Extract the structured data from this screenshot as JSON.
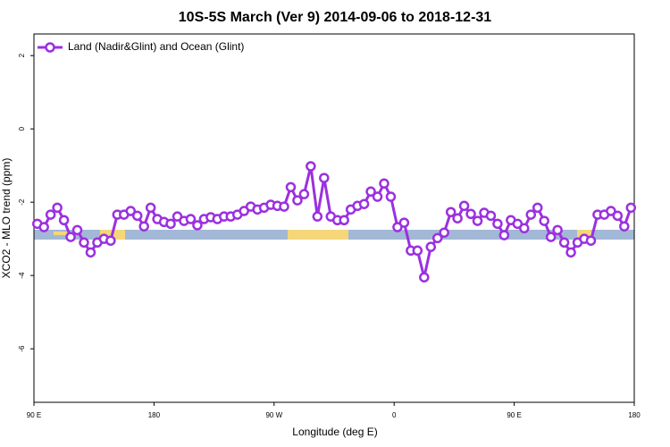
{
  "chart_data": {
    "type": "line",
    "title": "10S-5S March (Ver 9)   2014-09-06 to 2018-12-31",
    "x_label": "Longitude (deg E)",
    "y_label": "XCO2 - MLO trend (ppm)",
    "x": [
      92.5,
      97.5,
      102.5,
      107.5,
      112.5,
      117.5,
      122.5,
      127.5,
      132.5,
      137.5,
      142.5,
      147.5,
      152.5,
      157.5,
      162.5,
      167.5,
      172.5,
      177.5,
      182.5,
      187.5,
      192.5,
      197.5,
      202.5,
      207.5,
      212.5,
      217.5,
      222.5,
      227.5,
      232.5,
      237.5,
      242.5,
      247.5,
      252.5,
      257.5,
      262.5,
      267.5,
      272.5,
      277.5,
      282.5,
      287.5,
      292.5,
      297.5,
      302.5,
      307.5,
      312.5,
      317.5,
      322.5,
      327.5,
      332.5,
      337.5,
      342.5,
      347.5,
      352.5,
      357.5,
      362.5,
      367.5,
      372.5,
      377.5,
      382.5,
      387.5,
      392.5,
      397.5,
      402.5,
      407.5,
      412.5,
      417.5,
      422.5,
      427.5,
      432.5,
      437.5,
      442.5,
      447.5,
      452.5,
      457.5,
      462.5,
      467.5,
      472.5,
      477.5,
      482.5,
      487.5,
      492.5,
      497.5,
      502.5,
      507.5,
      512.5,
      517.5,
      522.5,
      527.5,
      532.5,
      537.5
    ],
    "series": [
      {
        "name": "Land (Nadir&Glint) and Ocean (Glint)",
        "color": "#9b30e0",
        "values": [
          -2.59,
          -2.68,
          -2.34,
          -2.15,
          -2.49,
          -2.95,
          -2.76,
          -3.1,
          -3.37,
          -3.1,
          -3.0,
          -3.05,
          -2.34,
          -2.34,
          -2.24,
          -2.37,
          -2.66,
          -2.15,
          -2.46,
          -2.54,
          -2.59,
          -2.39,
          -2.51,
          -2.46,
          -2.63,
          -2.46,
          -2.41,
          -2.46,
          -2.39,
          -2.39,
          -2.34,
          -2.24,
          -2.12,
          -2.2,
          -2.15,
          -2.07,
          -2.1,
          -2.12,
          -1.59,
          -1.95,
          -1.78,
          -1.02,
          -2.39,
          -1.34,
          -2.39,
          -2.49,
          -2.49,
          -2.2,
          -2.1,
          -2.05,
          -1.71,
          -1.85,
          -1.49,
          -1.85,
          -2.68,
          -2.56,
          -3.32,
          -3.32,
          -4.05,
          -3.22,
          -2.98,
          -2.83,
          -2.27,
          -2.44,
          -2.1,
          -2.32,
          -2.51,
          -2.29,
          -2.37,
          -2.59,
          -2.9,
          -2.49,
          -2.59,
          -2.71,
          -2.34,
          -2.15,
          -2.51,
          -2.95,
          -2.76,
          -3.1,
          -3.37,
          -3.1,
          -3.0,
          -3.05,
          -2.34,
          -2.34,
          -2.24,
          -2.37,
          -2.66,
          -2.15
        ]
      }
    ],
    "xlim": [
      90,
      540
    ],
    "xticks": [
      {
        "value": 90,
        "label": "90 E"
      },
      180,
      {
        "value": 270,
        "label": "90 W"
      },
      {
        "value": 360,
        "label": "0"
      },
      {
        "value": 450,
        "label": "90 E"
      },
      {
        "value": 540,
        "label": "180"
      }
    ],
    "ylim": [
      -7.46,
      2.59
    ],
    "yticks": [
      -6,
      -4,
      -2,
      0,
      2
    ],
    "legend": "top-left",
    "grid": false
  }
}
